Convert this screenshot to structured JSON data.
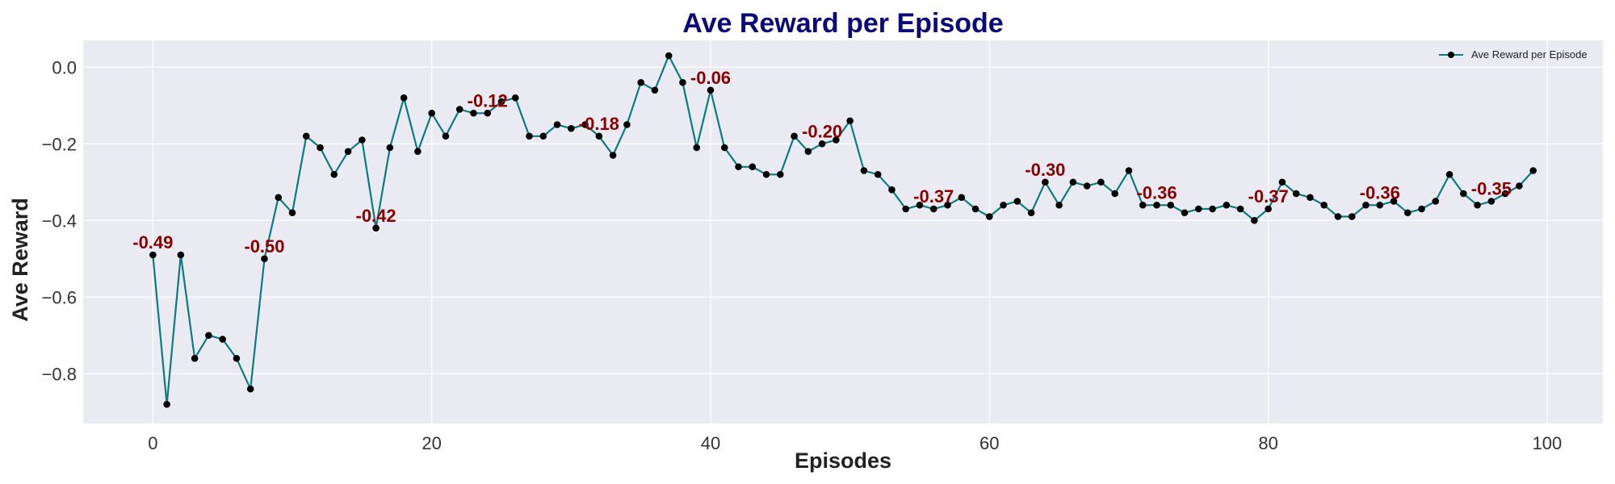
{
  "chart_data": {
    "type": "line",
    "title": "Ave Reward per Episode",
    "xlabel": "Episodes",
    "ylabel": "Ave Reward",
    "xlim": [
      -5,
      104
    ],
    "ylim": [
      -0.93,
      0.07
    ],
    "x_ticks": [
      0,
      20,
      40,
      60,
      80,
      100
    ],
    "y_ticks": [
      0.0,
      -0.2,
      -0.4,
      -0.6,
      -0.8
    ],
    "grid": true,
    "legend_position": "top-right",
    "series": [
      {
        "name": "Ave Reward per Episode",
        "color": "#0b7b7b",
        "marker_color": "#000000",
        "x": [
          0,
          1,
          2,
          3,
          4,
          5,
          6,
          7,
          8,
          9,
          10,
          11,
          12,
          13,
          14,
          15,
          16,
          17,
          18,
          19,
          20,
          21,
          22,
          23,
          24,
          25,
          26,
          27,
          28,
          29,
          30,
          31,
          32,
          33,
          34,
          35,
          36,
          37,
          38,
          39,
          40,
          41,
          42,
          43,
          44,
          45,
          46,
          47,
          48,
          49,
          50,
          51,
          52,
          53,
          54,
          55,
          56,
          57,
          58,
          59,
          60,
          61,
          62,
          63,
          64,
          65,
          66,
          67,
          68,
          69,
          70,
          71,
          72,
          73,
          74,
          75,
          76,
          77,
          78,
          79,
          80,
          81,
          82,
          83,
          84,
          85,
          86,
          87,
          88,
          89,
          90,
          91,
          92,
          93,
          94,
          95,
          96,
          97,
          98,
          99
        ],
        "values": [
          -0.49,
          -0.88,
          -0.49,
          -0.76,
          -0.7,
          -0.71,
          -0.76,
          -0.84,
          -0.5,
          -0.34,
          -0.38,
          -0.18,
          -0.21,
          -0.28,
          -0.22,
          -0.19,
          -0.42,
          -0.21,
          -0.08,
          -0.22,
          -0.12,
          -0.18,
          -0.11,
          -0.12,
          -0.12,
          -0.09,
          -0.08,
          -0.18,
          -0.18,
          -0.15,
          -0.16,
          -0.15,
          -0.18,
          -0.23,
          -0.15,
          -0.04,
          -0.06,
          0.03,
          -0.04,
          -0.21,
          -0.06,
          -0.21,
          -0.26,
          -0.26,
          -0.28,
          -0.28,
          -0.18,
          -0.22,
          -0.2,
          -0.19,
          -0.14,
          -0.27,
          -0.28,
          -0.32,
          -0.37,
          -0.36,
          -0.37,
          -0.36,
          -0.34,
          -0.37,
          -0.39,
          -0.36,
          -0.35,
          -0.38,
          -0.3,
          -0.36,
          -0.3,
          -0.31,
          -0.3,
          -0.33,
          -0.27,
          -0.36,
          -0.36,
          -0.36,
          -0.38,
          -0.37,
          -0.37,
          -0.36,
          -0.37,
          -0.4,
          -0.37,
          -0.3,
          -0.33,
          -0.34,
          -0.36,
          -0.39,
          -0.39,
          -0.36,
          -0.36,
          -0.35,
          -0.38,
          -0.37,
          -0.35,
          -0.28,
          -0.33,
          -0.36,
          -0.35,
          -0.33,
          -0.31,
          -0.27
        ]
      }
    ],
    "annotations": [
      {
        "x": 0,
        "y": -0.49,
        "text": "-0.49"
      },
      {
        "x": 8,
        "y": -0.5,
        "text": "-0.50"
      },
      {
        "x": 16,
        "y": -0.42,
        "text": "-0.42"
      },
      {
        "x": 24,
        "y": -0.12,
        "text": "-0.12"
      },
      {
        "x": 32,
        "y": -0.18,
        "text": "-0.18"
      },
      {
        "x": 40,
        "y": -0.06,
        "text": "-0.06"
      },
      {
        "x": 48,
        "y": -0.2,
        "text": "-0.20"
      },
      {
        "x": 56,
        "y": -0.37,
        "text": "-0.37"
      },
      {
        "x": 64,
        "y": -0.3,
        "text": "-0.30"
      },
      {
        "x": 72,
        "y": -0.36,
        "text": "-0.36"
      },
      {
        "x": 80,
        "y": -0.37,
        "text": "-0.37"
      },
      {
        "x": 88,
        "y": -0.36,
        "text": "-0.36"
      },
      {
        "x": 96,
        "y": -0.35,
        "text": "-0.35"
      }
    ],
    "colors": {
      "plot_background": "#eaeaf2",
      "grid": "#ffffff",
      "line": "#0b7b7b",
      "marker": "#000000",
      "title": "#0a0a7a",
      "annotation": "#8b0000"
    }
  }
}
